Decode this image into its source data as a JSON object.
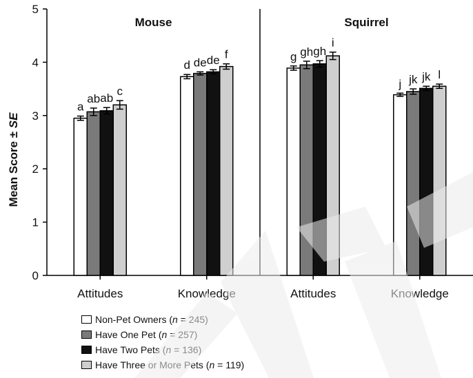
{
  "chart_data": {
    "type": "bar",
    "ylabel_main": "Mean Score ± ",
    "ylabel_italic": "SE",
    "ylim": [
      0,
      5
    ],
    "yticks": [
      "0",
      "1",
      "2",
      "3",
      "4",
      "5"
    ],
    "grid": false,
    "legend_position": "bottom-left",
    "panels": [
      {
        "title": "Mouse",
        "categories": [
          {
            "label": "Attitudes",
            "values": [
              2.95,
              3.07,
              3.09,
              3.2
            ],
            "errors": [
              0.04,
              0.07,
              0.06,
              0.08
            ],
            "letters": [
              "a",
              "ab",
              "ab",
              "c"
            ]
          },
          {
            "label": "Knowledge",
            "values": [
              3.73,
              3.79,
              3.82,
              3.92
            ],
            "errors": [
              0.04,
              0.03,
              0.04,
              0.05
            ],
            "letters": [
              "d",
              "de",
              "de",
              "f"
            ]
          }
        ]
      },
      {
        "title": "Squirrel",
        "categories": [
          {
            "label": "Attitudes",
            "values": [
              3.89,
              3.95,
              3.97,
              4.12
            ],
            "errors": [
              0.04,
              0.07,
              0.06,
              0.07
            ],
            "letters": [
              "g",
              "gh",
              "gh",
              "i"
            ]
          },
          {
            "label": "Knowledge",
            "values": [
              3.39,
              3.45,
              3.51,
              3.55
            ],
            "errors": [
              0.03,
              0.05,
              0.04,
              0.04
            ],
            "letters": [
              "j",
              "jk",
              "jk",
              "l"
            ]
          }
        ]
      }
    ],
    "series": [
      {
        "name": "Non-Pet Owners (",
        "n_text": "n",
        "count": " = 245)",
        "color": "#ffffff"
      },
      {
        "name": "Have One Pet (",
        "n_text": "n",
        "count": " = 257)",
        "color": "#7a7a7a"
      },
      {
        "name": "Have Two Pets (",
        "n_text": "n",
        "count": " = 136)",
        "color": "#111111"
      },
      {
        "name": "Have Three or More Pets (",
        "n_text": "n",
        "count": " = 119)",
        "color": "#cfcfcf"
      }
    ]
  }
}
